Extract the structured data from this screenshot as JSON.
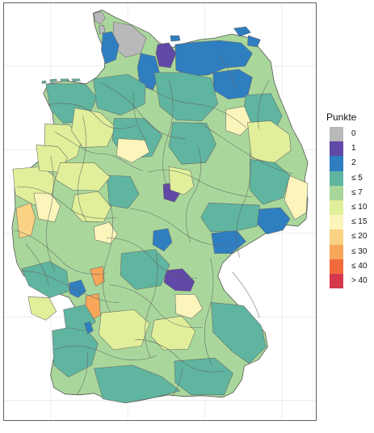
{
  "legend": {
    "title": "Punkte",
    "items": [
      {
        "label": "0",
        "color": "#b9b9b9"
      },
      {
        "label": "1",
        "color": "#6049a6"
      },
      {
        "label": "2",
        "color": "#2f7ec0"
      },
      {
        "label": "≤ 5",
        "color": "#5fb59f"
      },
      {
        "label": "≤ 7",
        "color": "#a9d79b"
      },
      {
        "label": "≤ 10",
        "color": "#e1ef9a"
      },
      {
        "label": "≤ 15",
        "color": "#fbf5bc"
      },
      {
        "label": "≤ 20",
        "color": "#fad283"
      },
      {
        "label": "≤ 30",
        "color": "#f7a65a"
      },
      {
        "label": "≤ 40",
        "color": "#f16a3c"
      },
      {
        "label": "> 40",
        "color": "#d4384c"
      }
    ]
  }
}
